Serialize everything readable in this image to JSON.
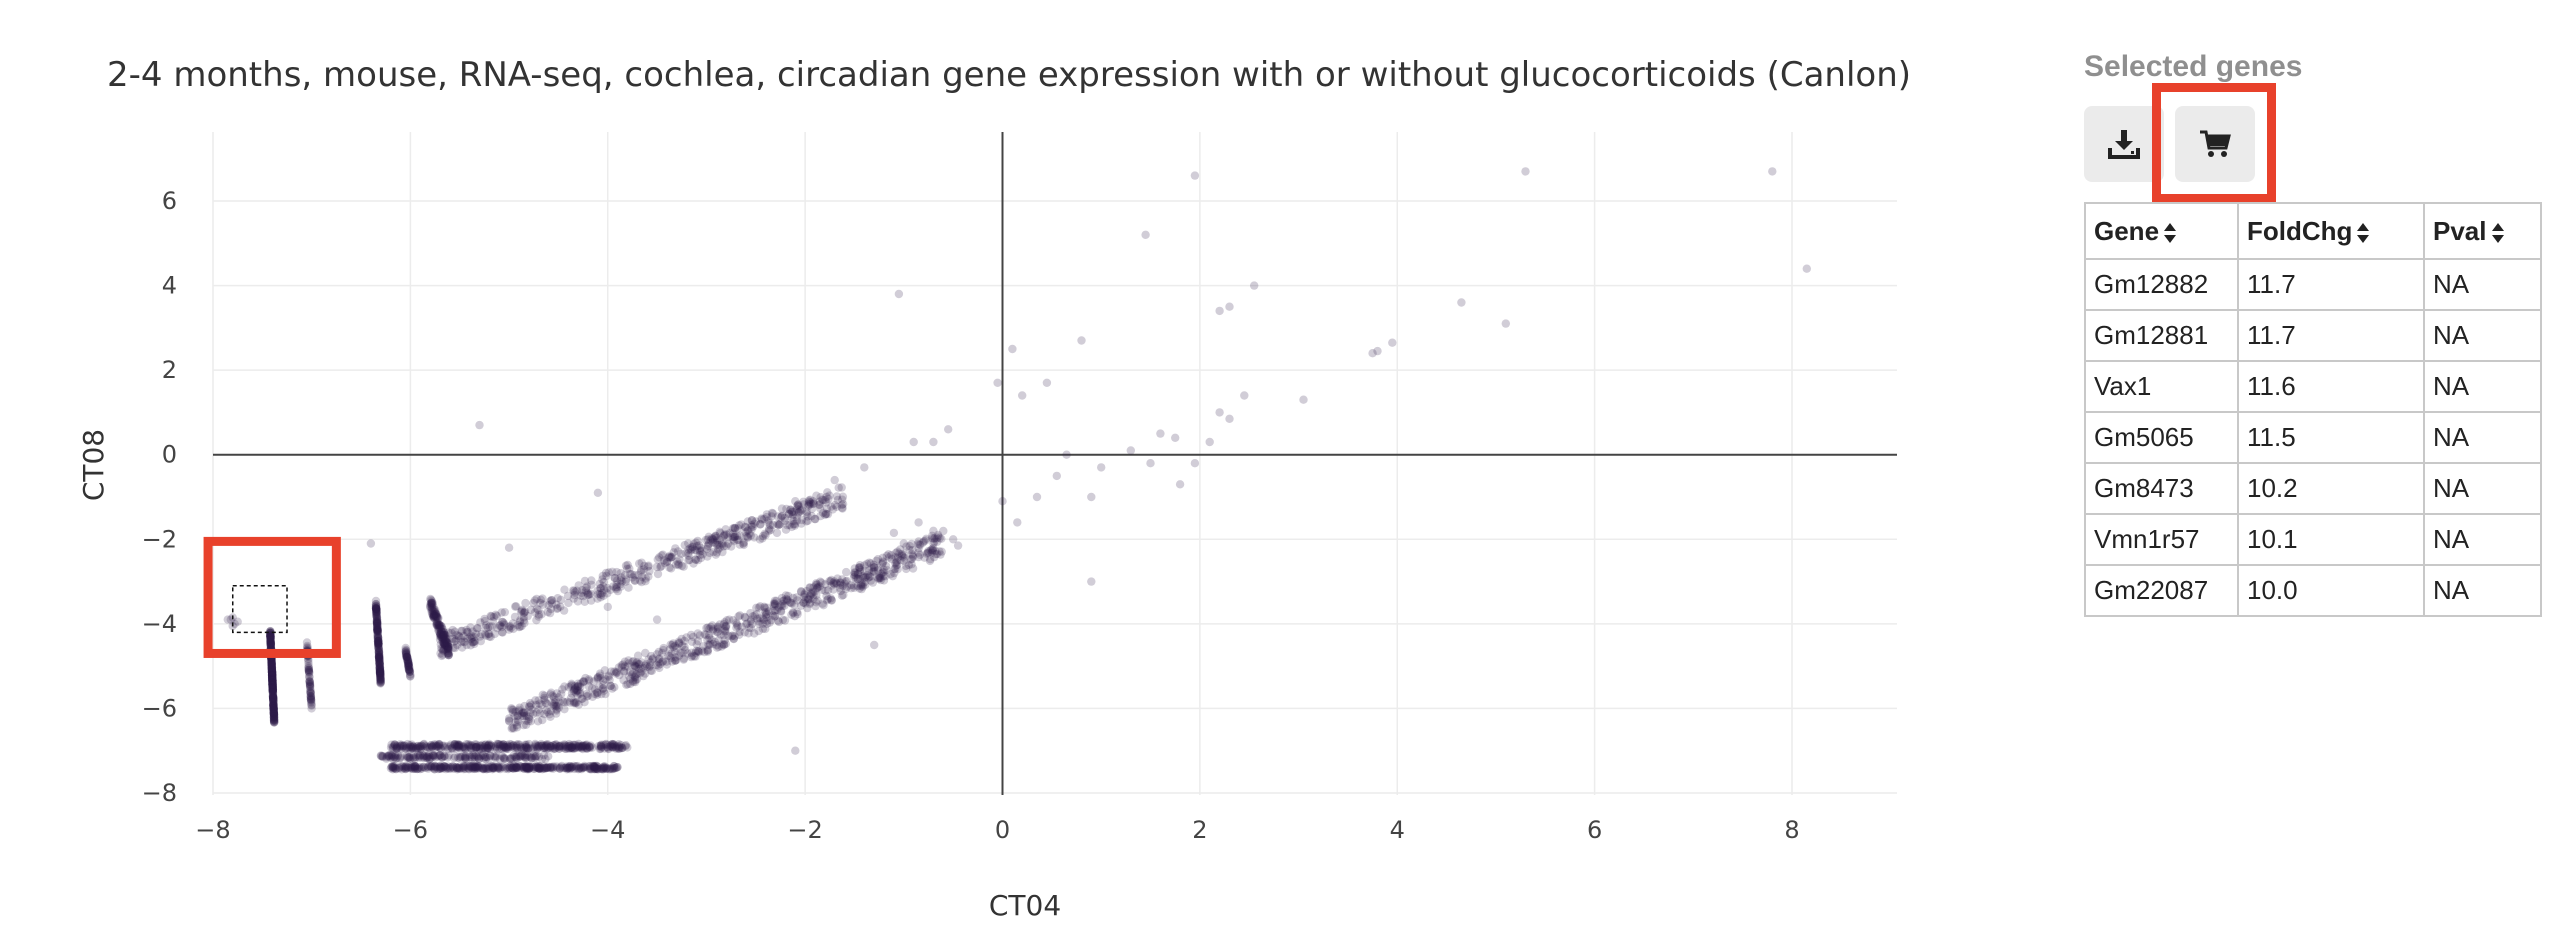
{
  "chart_data": {
    "type": "scatter",
    "title": "2-4 months, mouse, RNA-seq, cochlea, circadian gene expression with or without glucocorticoids (Canlon)",
    "xlabel": "CT04",
    "ylabel": "CT08",
    "xlim": [
      -8.2,
      9.1
    ],
    "ylim": [
      -8.1,
      7.6
    ],
    "xticks": [
      -8,
      -6,
      -4,
      -2,
      0,
      2,
      4,
      6,
      8
    ],
    "yticks": [
      -8,
      -6,
      -4,
      -2,
      0,
      2,
      4,
      6
    ],
    "xtick_labels": [
      "−8",
      "−6",
      "−4",
      "−2",
      "0",
      "2",
      "4",
      "6",
      "8"
    ],
    "ytick_labels": [
      "−8",
      "−6",
      "−4",
      "−2",
      "0",
      "2",
      "4",
      "6"
    ],
    "grid": true,
    "zero_lines": true,
    "marker_color": "#2e1a47",
    "marker_opacity": 0.22,
    "highlight_color": "#e8412b",
    "selection_box": {
      "x": [
        -7.8,
        -7.25
      ],
      "y": [
        -4.2,
        -3.1
      ]
    },
    "highlight_box": {
      "x": [
        -8.05,
        -6.75
      ],
      "y": [
        -4.7,
        -2.05
      ]
    },
    "series": [
      {
        "points": [
          [
            -7.85,
            -3.9
          ],
          [
            -7.8,
            -3.85
          ],
          [
            -7.78,
            -4.0
          ],
          [
            -7.75,
            -3.95
          ],
          [
            -7.8,
            -4.05
          ],
          [
            -7.82,
            -3.9
          ],
          [
            -5.3,
            0.7
          ],
          [
            -6.4,
            -2.1
          ],
          [
            -5.0,
            -2.2
          ],
          [
            -4.1,
            -0.9
          ],
          [
            -2.1,
            -1.1
          ],
          [
            -1.7,
            -0.6
          ],
          [
            -1.4,
            -0.3
          ],
          [
            -1.05,
            3.8
          ],
          [
            -0.9,
            0.3
          ],
          [
            -0.7,
            0.3
          ],
          [
            -0.55,
            0.6
          ],
          [
            -0.05,
            1.7
          ],
          [
            0.1,
            2.5
          ],
          [
            0.2,
            1.4
          ],
          [
            0.45,
            1.7
          ],
          [
            0.8,
            2.7
          ],
          [
            1.45,
            5.2
          ],
          [
            1.95,
            6.6
          ],
          [
            2.2,
            3.4
          ],
          [
            2.3,
            3.5
          ],
          [
            2.55,
            4.0
          ],
          [
            2.2,
            1.0
          ],
          [
            2.3,
            0.85
          ],
          [
            2.45,
            1.4
          ],
          [
            3.05,
            1.3
          ],
          [
            3.75,
            2.4
          ],
          [
            3.8,
            2.45
          ],
          [
            3.95,
            2.65
          ],
          [
            4.65,
            3.6
          ],
          [
            5.1,
            3.1
          ],
          [
            5.3,
            6.7
          ],
          [
            7.8,
            6.7
          ],
          [
            8.15,
            4.4
          ],
          [
            0.0,
            -1.1
          ],
          [
            0.15,
            -1.6
          ],
          [
            0.35,
            -1.0
          ],
          [
            0.55,
            -0.5
          ],
          [
            0.65,
            0.0
          ],
          [
            0.9,
            -1.0
          ],
          [
            1.0,
            -0.3
          ],
          [
            1.3,
            0.1
          ],
          [
            1.5,
            -0.2
          ],
          [
            1.6,
            0.5
          ],
          [
            1.75,
            0.4
          ],
          [
            1.8,
            -0.7
          ],
          [
            1.95,
            -0.2
          ],
          [
            2.1,
            0.3
          ],
          [
            0.9,
            -3.0
          ],
          [
            -1.3,
            -4.5
          ],
          [
            -2.1,
            -7.0
          ],
          [
            -4.0,
            -3.6
          ],
          [
            -3.5,
            -3.9
          ],
          [
            -3.0,
            -4.1
          ],
          [
            -0.85,
            -1.6
          ],
          [
            -0.7,
            -1.8
          ],
          [
            -0.5,
            -2.0
          ],
          [
            -1.0,
            -2.1
          ],
          [
            -1.1,
            -1.85
          ],
          [
            -0.45,
            -2.15
          ]
        ]
      }
    ]
  },
  "panel": {
    "title": "Selected genes",
    "download_icon": "download-icon",
    "cart_icon": "cart-icon"
  },
  "table": {
    "headers": [
      "Gene",
      "FoldChg",
      "Pval"
    ],
    "rows": [
      [
        "Gm12882",
        "11.7",
        "NA"
      ],
      [
        "Gm12881",
        "11.7",
        "NA"
      ],
      [
        "Vax1",
        "11.6",
        "NA"
      ],
      [
        "Gm5065",
        "11.5",
        "NA"
      ],
      [
        "Gm8473",
        "10.2",
        "NA"
      ],
      [
        "Vmn1r57",
        "10.1",
        "NA"
      ],
      [
        "Gm22087",
        "10.0",
        "NA"
      ]
    ]
  }
}
